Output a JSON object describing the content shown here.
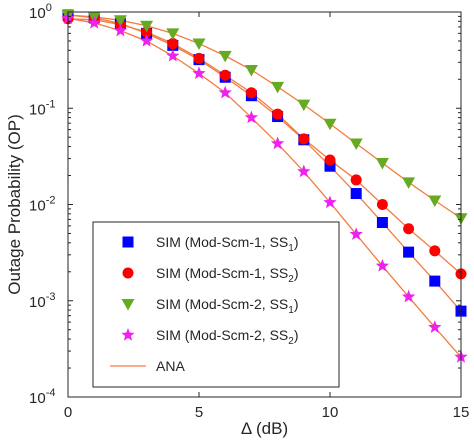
{
  "chart_data": {
    "type": "line",
    "xlabel": "Δ (dB)",
    "ylabel": "Outage Probability (OP)",
    "xlim": [
      0,
      15
    ],
    "ylim": [
      0.0001,
      1
    ],
    "yscale": "log",
    "grid": false,
    "legend_position": "bottom-left",
    "x_ticks": [
      "0",
      "5",
      "10",
      "15"
    ],
    "y_ticks": [
      {
        "value": 1,
        "base": "10",
        "exp": "0"
      },
      {
        "value": 0.1,
        "base": "10",
        "exp": "-1"
      },
      {
        "value": 0.01,
        "base": "10",
        "exp": "-2"
      },
      {
        "value": 0.001,
        "base": "10",
        "exp": "-3"
      },
      {
        "value": 0.0001,
        "base": "10",
        "exp": "-4"
      }
    ],
    "x": [
      0,
      1,
      2,
      3,
      4,
      5,
      6,
      7,
      8,
      9,
      10,
      11,
      12,
      13,
      14,
      15
    ],
    "series": [
      {
        "name": "SIM (Mod-Scm-1, SS",
        "sub": "1",
        "close": ")",
        "marker": "square",
        "color": "#0000ff",
        "values": [
          0.93,
          0.87,
          0.76,
          0.6,
          0.45,
          0.32,
          0.21,
          0.135,
          0.082,
          0.047,
          0.025,
          0.013,
          0.0065,
          0.0032,
          0.0016,
          0.00078
        ]
      },
      {
        "name": "SIM (Mod-Scm-1, SS",
        "sub": "2",
        "close": ")",
        "marker": "circle",
        "color": "#ff0000",
        "values": [
          0.85,
          0.83,
          0.74,
          0.62,
          0.47,
          0.33,
          0.22,
          0.145,
          0.087,
          0.048,
          0.029,
          0.018,
          0.01,
          0.0056,
          0.0033,
          0.0019
        ]
      },
      {
        "name": "SIM (Mod-Scm-2, SS",
        "sub": "1",
        "close": ")",
        "marker": "triangle-down",
        "color": "#66aa22",
        "values": [
          0.93,
          0.89,
          0.82,
          0.72,
          0.6,
          0.47,
          0.35,
          0.25,
          0.167,
          0.109,
          0.069,
          0.043,
          0.027,
          0.017,
          0.011,
          0.0072
        ]
      },
      {
        "name": "SIM (Mod-Scm-2, SS",
        "sub": "2",
        "close": ")",
        "marker": "star",
        "color": "#ee22ee",
        "values": [
          0.86,
          0.77,
          0.64,
          0.5,
          0.35,
          0.23,
          0.145,
          0.08,
          0.043,
          0.022,
          0.0105,
          0.0049,
          0.0023,
          0.0011,
          0.00053,
          0.00026
        ]
      },
      {
        "name": "ANA",
        "marker": "line",
        "color": "#f47c40"
      }
    ]
  }
}
